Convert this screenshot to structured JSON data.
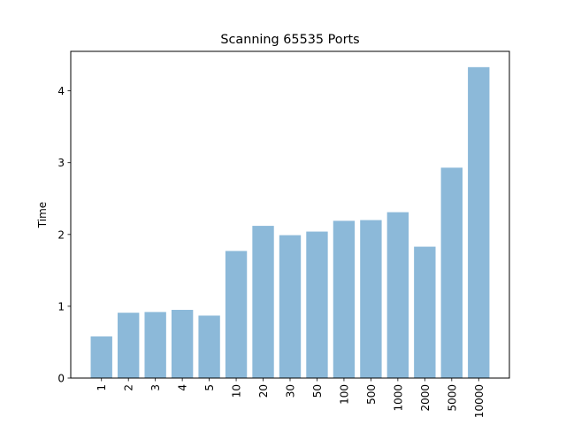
{
  "chart_data": {
    "type": "bar",
    "title": "Scanning 65535 Ports",
    "xlabel": "",
    "ylabel": "Time",
    "categories": [
      "1",
      "2",
      "3",
      "4",
      "5",
      "10",
      "20",
      "30",
      "50",
      "100",
      "500",
      "1000",
      "2000",
      "5000",
      "10000"
    ],
    "values": [
      0.58,
      0.91,
      0.92,
      0.95,
      0.87,
      1.77,
      2.12,
      1.99,
      2.04,
      2.19,
      2.2,
      2.31,
      1.83,
      2.93,
      4.33
    ],
    "ylim": [
      0,
      4.55
    ],
    "yticks": [
      0,
      1,
      2,
      3,
      4
    ],
    "bar_color": "#8cb9d9",
    "grid": false,
    "x_tick_rotation": "vertical"
  }
}
